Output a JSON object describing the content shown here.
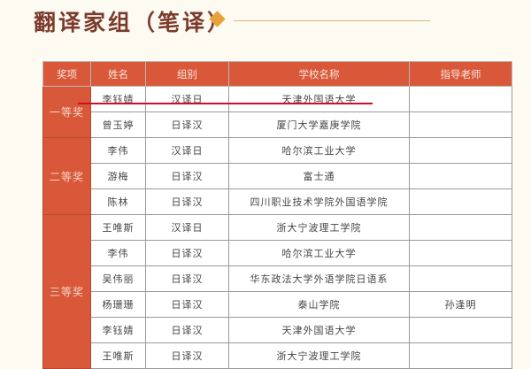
{
  "title": "翻译家组（笔译）",
  "colors": {
    "accent": "#d9583a",
    "title": "#7b3b2c",
    "diamond": "#e8a23c",
    "underline": "#d01020"
  },
  "table": {
    "headers": [
      "奖项",
      "姓名",
      "组别",
      "学校名称",
      "指导老师"
    ],
    "groups": [
      {
        "award": "一等奖",
        "rows": [
          {
            "name": "李钰婧",
            "group": "汉译日",
            "school": "天津外国语大学",
            "teacher": ""
          },
          {
            "name": "曾玉婷",
            "group": "日译汉",
            "school": "厦门大学嘉庚学院",
            "teacher": ""
          }
        ]
      },
      {
        "award": "二等奖",
        "rows": [
          {
            "name": "李伟",
            "group": "汉译日",
            "school": "哈尔滨工业大学",
            "teacher": ""
          },
          {
            "name": "游梅",
            "group": "日译汉",
            "school": "富士通",
            "teacher": ""
          },
          {
            "name": "陈林",
            "group": "日译汉",
            "school": "四川职业技术学院外国语学院",
            "teacher": ""
          }
        ]
      },
      {
        "award": "三等奖",
        "rows": [
          {
            "name": "王唯斯",
            "group": "汉译日",
            "school": "浙大宁波理工学院",
            "teacher": ""
          },
          {
            "name": "李伟",
            "group": "日译汉",
            "school": "哈尔滨工业大学",
            "teacher": ""
          },
          {
            "name": "吴伟丽",
            "group": "日译汉",
            "school": "华东政法大学外语学院日语系",
            "teacher": ""
          },
          {
            "name": "杨珊珊",
            "group": "日译汉",
            "school": "泰山学院",
            "teacher": "孙逢明"
          },
          {
            "name": "李钰婧",
            "group": "日译汉",
            "school": "天津外国语大学",
            "teacher": ""
          },
          {
            "name": "王唯斯",
            "group": "日译汉",
            "school": "浙大宁波理工学院",
            "teacher": ""
          }
        ]
      }
    ]
  }
}
